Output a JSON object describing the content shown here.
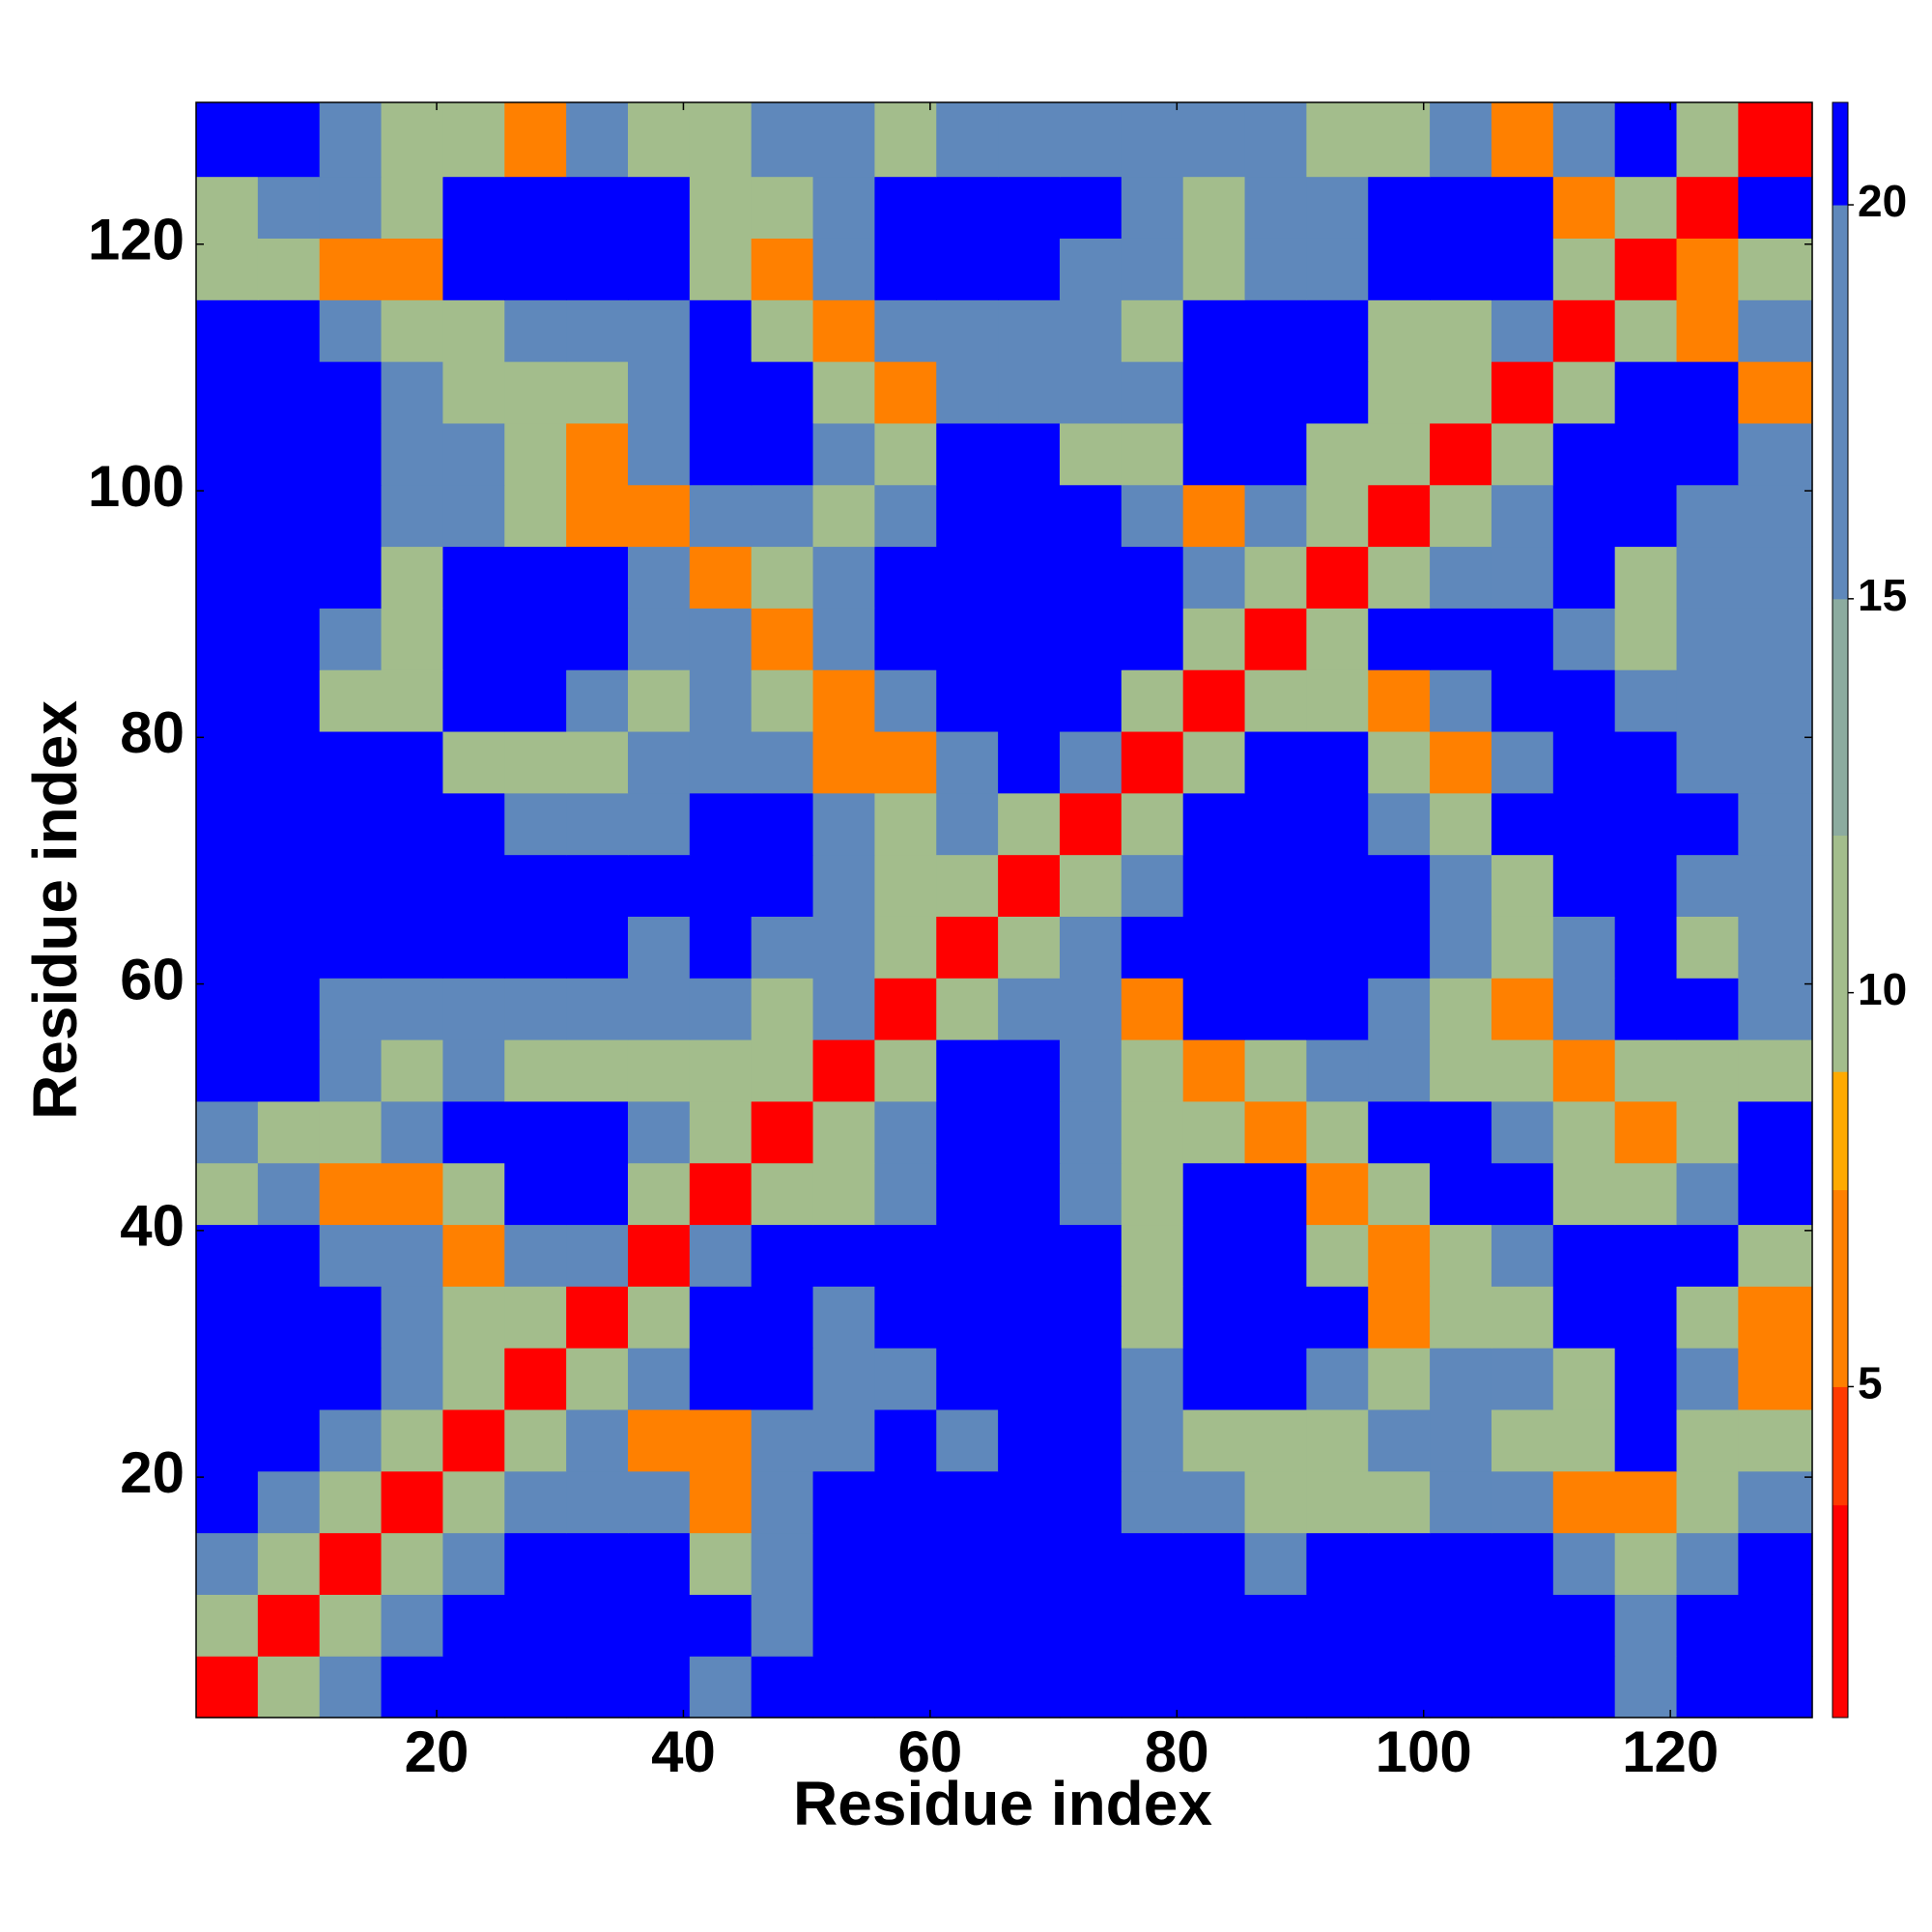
{
  "chart_data": {
    "type": "heatmap",
    "x_label": "Residue index",
    "y_label": "Residue index",
    "xlim": [
      0.5,
      131.5
    ],
    "ylim": [
      0.5,
      131.5
    ],
    "xticks": [
      20,
      40,
      60,
      80,
      100,
      120
    ],
    "yticks": [
      20,
      40,
      60,
      80,
      100,
      120
    ],
    "xbins": [
      0.5,
      5.5,
      10.5,
      15.5,
      20.5,
      25.5,
      30.5,
      35.5,
      40.5,
      45.5,
      50.5,
      55.5,
      60.5,
      65.5,
      70.5,
      75.5,
      80.5,
      85.5,
      90.5,
      95.5,
      100.5,
      105.5,
      110.5,
      115.5,
      120.5,
      125.5,
      131.5
    ],
    "ybins": [
      0.5,
      5.5,
      10.5,
      15.5,
      20.5,
      25.5,
      30.5,
      35.5,
      40.5,
      45.5,
      50.5,
      55.5,
      60.5,
      65.5,
      70.5,
      75.5,
      80.5,
      85.5,
      90.5,
      95.5,
      100.5,
      105.5,
      110.5,
      115.5,
      120.5,
      125.5,
      131.5
    ],
    "zlim": [
      0.8,
      21.3
    ],
    "zticks": [
      5,
      10,
      15,
      20
    ],
    "colorscale": [
      {
        "max": 3.5,
        "color": "#ff0000"
      },
      {
        "max": 5,
        "color": "#ff3a00"
      },
      {
        "max": 7.5,
        "color": "#ff8000"
      },
      {
        "max": 9,
        "color": "#ffaa00"
      },
      {
        "max": 12,
        "color": "#a3bd8c"
      },
      {
        "max": 15,
        "color": "#8cab9f"
      },
      {
        "max": 20,
        "color": "#5f88bb"
      },
      {
        "max": 21.3,
        "color": "#0000ff"
      }
    ],
    "z": [
      [
        2,
        11,
        17,
        21,
        21,
        21,
        21,
        21,
        17,
        21,
        21,
        21,
        21,
        21,
        21,
        21,
        21,
        21,
        21,
        21,
        21,
        21,
        21,
        17,
        21,
        21
      ],
      [
        11,
        2,
        11,
        17,
        21,
        21,
        21,
        21,
        21,
        17,
        21,
        21,
        21,
        21,
        21,
        21,
        21,
        21,
        21,
        21,
        21,
        21,
        21,
        17,
        21,
        21
      ],
      [
        17,
        11,
        2,
        11,
        17,
        21,
        21,
        21,
        11,
        17,
        21,
        21,
        21,
        21,
        21,
        21,
        21,
        17,
        21,
        21,
        21,
        21,
        17,
        11,
        17,
        21
      ],
      [
        21,
        17,
        11,
        2,
        11,
        17,
        17,
        17,
        7,
        17,
        21,
        21,
        21,
        21,
        21,
        17,
        17,
        11,
        11,
        11,
        17,
        17,
        7,
        7,
        11,
        17
      ],
      [
        21,
        21,
        17,
        11,
        2,
        11,
        17,
        7,
        7,
        17,
        17,
        21,
        17,
        21,
        21,
        17,
        11,
        11,
        11,
        17,
        17,
        11,
        11,
        21,
        11,
        11
      ],
      [
        21,
        21,
        21,
        17,
        11,
        2,
        11,
        17,
        21,
        21,
        17,
        17,
        21,
        21,
        21,
        17,
        21,
        21,
        17,
        11,
        17,
        17,
        11,
        21,
        17,
        7
      ],
      [
        21,
        21,
        21,
        17,
        11,
        11,
        2,
        11,
        21,
        21,
        17,
        21,
        21,
        21,
        21,
        11,
        21,
        21,
        21,
        7,
        11,
        11,
        21,
        21,
        11,
        7
      ],
      [
        21,
        21,
        17,
        17,
        7,
        17,
        17,
        2,
        17,
        21,
        21,
        21,
        21,
        21,
        21,
        11,
        21,
        21,
        11,
        7,
        11,
        17,
        21,
        21,
        21,
        11
      ],
      [
        11,
        17,
        7,
        7,
        11,
        21,
        21,
        11,
        2,
        11,
        11,
        17,
        21,
        21,
        17,
        11,
        21,
        21,
        7,
        11,
        21,
        21,
        11,
        11,
        17,
        21
      ],
      [
        17,
        11,
        11,
        17,
        21,
        21,
        21,
        17,
        11,
        2,
        11,
        17,
        21,
        21,
        17,
        11,
        11,
        7,
        11,
        21,
        21,
        17,
        11,
        7,
        11,
        21
      ],
      [
        21,
        21,
        17,
        11,
        17,
        11,
        11,
        11,
        11,
        11,
        2,
        11,
        21,
        21,
        17,
        11,
        7,
        11,
        17,
        17,
        11,
        11,
        7,
        11,
        11,
        11
      ],
      [
        21,
        21,
        17,
        17,
        17,
        17,
        17,
        17,
        17,
        11,
        17,
        2,
        11,
        17,
        17,
        7,
        21,
        21,
        21,
        17,
        11,
        7,
        17,
        21,
        21,
        17
      ],
      [
        21,
        21,
        21,
        21,
        21,
        21,
        21,
        17,
        21,
        17,
        17,
        11,
        2,
        11,
        17,
        21,
        21,
        21,
        21,
        21,
        17,
        11,
        17,
        21,
        11,
        17
      ],
      [
        21,
        21,
        21,
        21,
        21,
        21,
        21,
        21,
        21,
        21,
        17,
        11,
        11,
        2,
        11,
        17,
        21,
        21,
        21,
        21,
        17,
        11,
        21,
        21,
        17,
        17
      ],
      [
        21,
        21,
        21,
        21,
        21,
        17,
        17,
        17,
        21,
        21,
        17,
        11,
        17,
        11,
        2,
        11,
        21,
        21,
        21,
        17,
        11,
        21,
        21,
        21,
        21,
        17
      ],
      [
        21,
        21,
        21,
        21,
        11,
        11,
        11,
        17,
        17,
        17,
        7,
        7,
        17,
        21,
        17,
        2,
        11,
        21,
        21,
        11,
        7,
        17,
        21,
        21,
        17,
        17
      ],
      [
        21,
        21,
        11,
        11,
        21,
        21,
        17,
        11,
        17,
        11,
        7,
        17,
        21,
        21,
        21,
        11,
        2,
        11,
        11,
        7,
        17,
        21,
        21,
        17,
        17,
        17
      ],
      [
        21,
        21,
        17,
        11,
        21,
        21,
        21,
        17,
        17,
        7,
        17,
        21,
        21,
        21,
        21,
        21,
        11,
        2,
        11,
        21,
        21,
        21,
        17,
        11,
        17,
        17
      ],
      [
        21,
        21,
        21,
        11,
        21,
        21,
        21,
        17,
        7,
        11,
        17,
        21,
        21,
        21,
        21,
        21,
        17,
        11,
        2,
        11,
        17,
        17,
        21,
        11,
        17,
        17
      ],
      [
        21,
        21,
        21,
        17,
        17,
        11,
        7,
        7,
        17,
        17,
        11,
        17,
        21,
        21,
        21,
        17,
        7,
        17,
        11,
        2,
        11,
        17,
        21,
        21,
        17,
        17
      ],
      [
        21,
        21,
        21,
        17,
        17,
        11,
        7,
        17,
        21,
        21,
        17,
        11,
        21,
        21,
        11,
        11,
        21,
        21,
        11,
        11,
        2,
        11,
        21,
        21,
        21,
        17
      ],
      [
        21,
        21,
        21,
        17,
        11,
        11,
        11,
        17,
        21,
        21,
        11,
        7,
        17,
        17,
        17,
        17,
        21,
        21,
        21,
        11,
        11,
        2,
        11,
        21,
        21,
        7
      ],
      [
        21,
        21,
        17,
        11,
        11,
        17,
        17,
        17,
        21,
        11,
        7,
        17,
        17,
        17,
        17,
        11,
        21,
        21,
        21,
        11,
        11,
        17,
        2,
        11,
        7,
        17
      ],
      [
        11,
        11,
        7,
        7,
        21,
        21,
        21,
        21,
        11,
        7,
        17,
        21,
        21,
        21,
        17,
        17,
        11,
        17,
        17,
        21,
        21,
        21,
        11,
        2,
        7,
        11
      ],
      [
        11,
        17,
        17,
        11,
        21,
        21,
        21,
        21,
        11,
        11,
        17,
        21,
        21,
        21,
        21,
        17,
        11,
        17,
        17,
        21,
        21,
        21,
        7,
        11,
        2,
        21
      ],
      [
        21,
        21,
        17,
        11,
        11,
        7,
        17,
        11,
        11,
        17,
        17,
        11,
        17,
        17,
        17,
        17,
        17,
        17,
        11,
        11,
        17,
        7,
        17,
        21,
        11,
        2
      ]
    ]
  }
}
